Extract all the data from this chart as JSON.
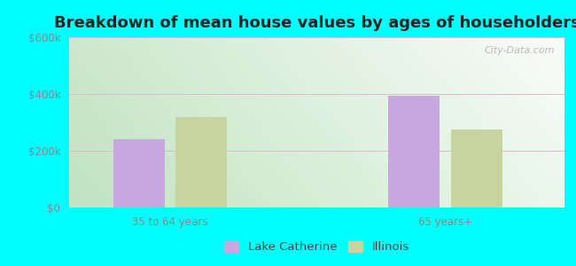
{
  "title": "Breakdown of mean house values by ages of householders",
  "categories": [
    "35 to 64 years",
    "65 years+"
  ],
  "lake_catherine": [
    240000,
    395000
  ],
  "illinois": [
    320000,
    275000
  ],
  "lake_catherine_color": "#c9a8e0",
  "illinois_color": "#c8d4a0",
  "ylim": [
    0,
    600000
  ],
  "yticks": [
    0,
    200000,
    400000,
    600000
  ],
  "ytick_labels": [
    "$0",
    "$200k",
    "$400k",
    "$600k"
  ],
  "legend_lake_catherine": "Lake Catherine",
  "legend_illinois": "Illinois",
  "background_outer": "#00ffff",
  "bar_width": 0.28,
  "group_positions": [
    1.0,
    2.5
  ],
  "title_fontsize": 13,
  "tick_fontsize": 8.5,
  "legend_fontsize": 9.5
}
